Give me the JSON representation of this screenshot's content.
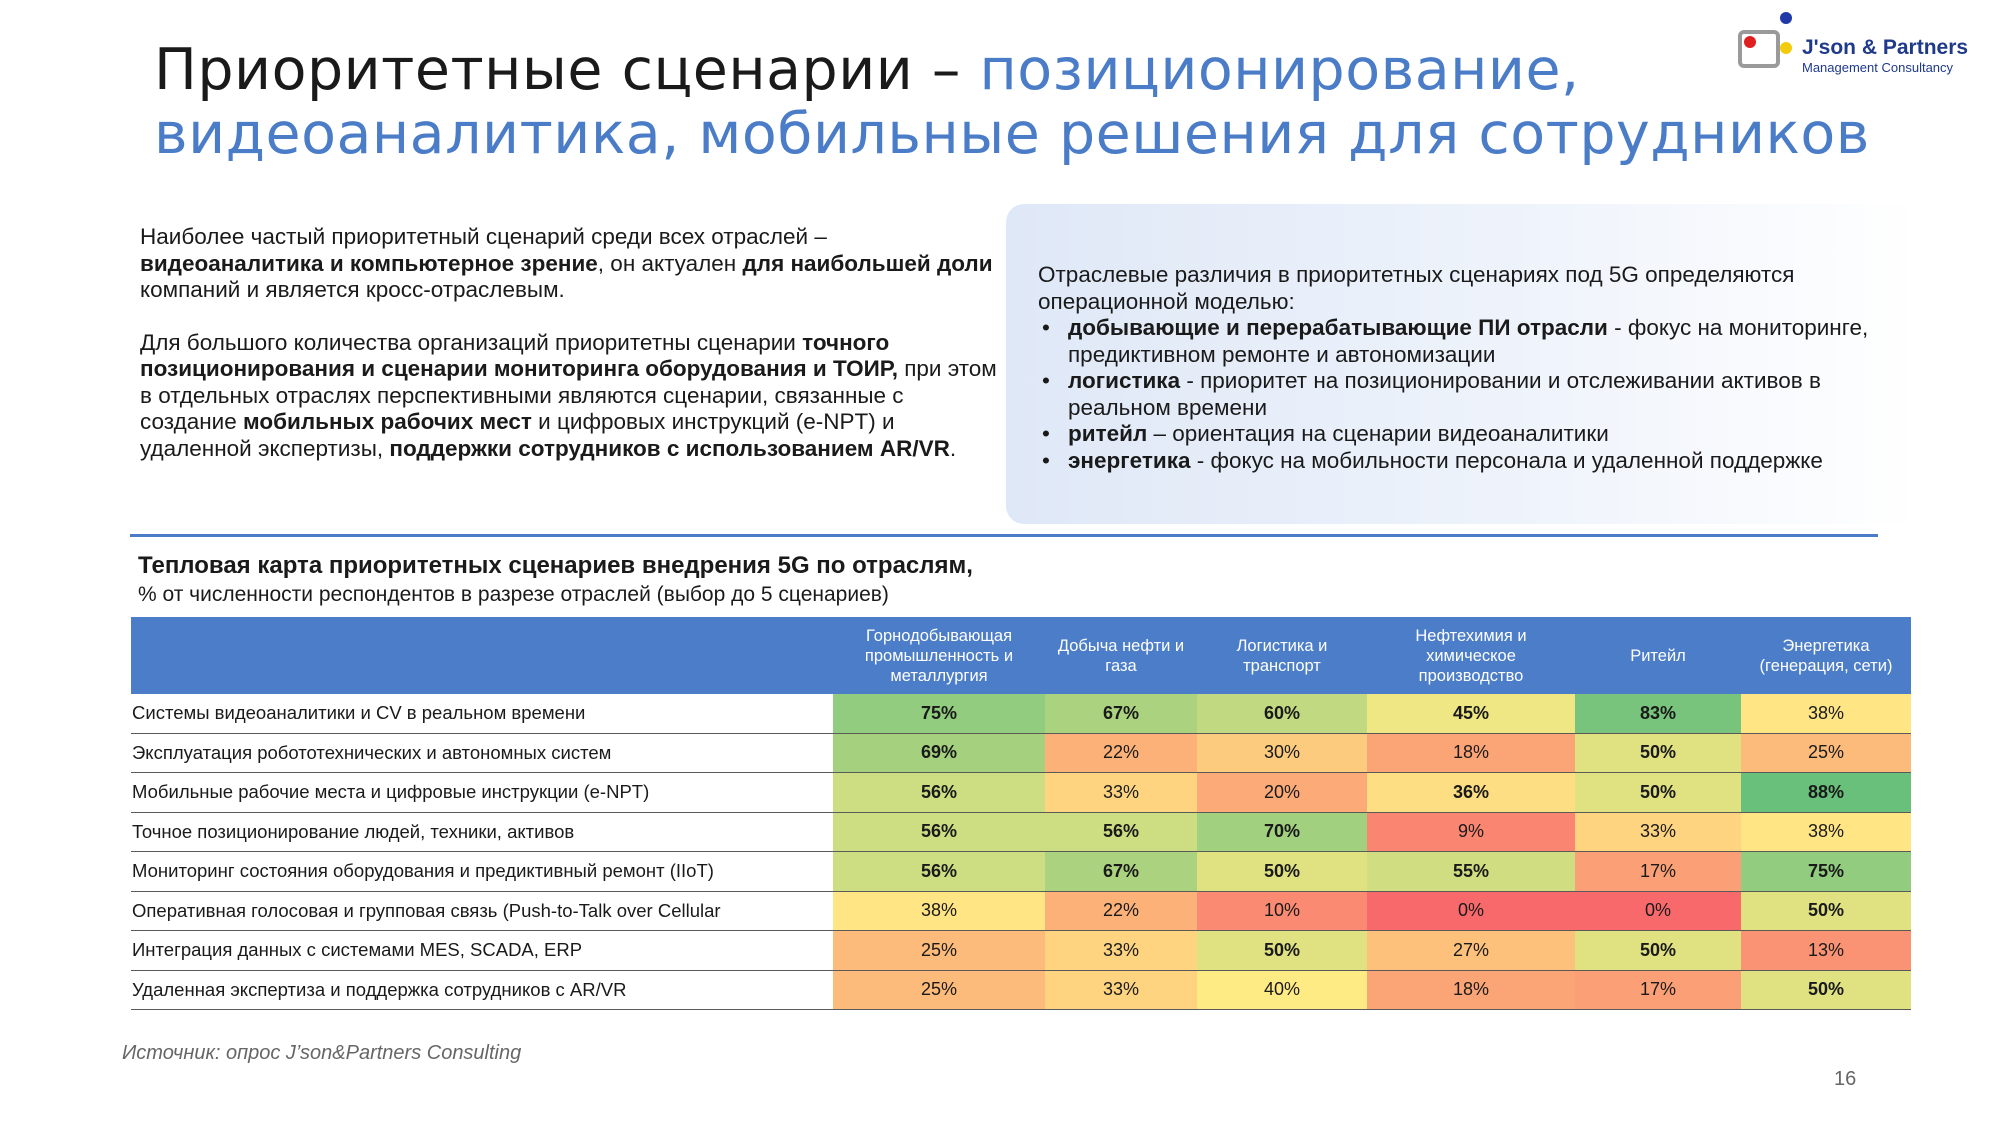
{
  "title": {
    "part1": "Приоритетные сценарии – ",
    "part2": "позиционирование, видеоаналитика, мобильные решения для сотрудников"
  },
  "logo": {
    "name": "J'son & Partners",
    "subtitle": "Management Consultancy"
  },
  "left_text": {
    "p1": [
      {
        "t": "Наиболее частый приоритетный сценарий среди всех отраслей – ",
        "b": false
      },
      {
        "t": "видеоаналитика и компьютерное зрение",
        "b": true
      },
      {
        "t": ", он актуален ",
        "b": false
      },
      {
        "t": "для наибольшей доли",
        "b": true
      },
      {
        "t": " компаний и является кросс-отраслевым.",
        "b": false
      }
    ],
    "p2": [
      {
        "t": "Для большого количества организаций приоритетны сценарии ",
        "b": false
      },
      {
        "t": "точного позиционирования и сценарии мониторинга оборудования и ТОИР,",
        "b": true
      },
      {
        "t": " при этом в отдельных отраслях перспективными являются сценарии, связанные с создание ",
        "b": false
      },
      {
        "t": "мобильных рабочих мест",
        "b": true
      },
      {
        "t": " и цифровых инструкций (e-NPT) и удаленной экспертизы, ",
        "b": false
      },
      {
        "t": "поддержки сотрудников с использованием AR/VR",
        "b": true
      },
      {
        "t": ".",
        "b": false
      }
    ]
  },
  "right_box": {
    "intro": "Отраслевые различия в приоритетных сценариях под 5G определяются операционной моделью:",
    "bullets": [
      {
        "bold": "добывающие и перерабатывающие ПИ отрасли",
        "rest": " - фокус на мониторинге, предиктивном ремонте и автономизации"
      },
      {
        "bold": "логистика",
        "rest": " - приоритет на позиционировании и отслеживании активов в реальном времени"
      },
      {
        "bold": "ритейл",
        "rest": " – ориентация на сценарии видеоаналитики"
      },
      {
        "bold": "энергетика",
        "rest": " - фокус на мобильности персонала и удаленной поддержке"
      }
    ]
  },
  "heatmap": {
    "title": "Тепловая карта приоритетных сценариев внедрения 5G по отраслям,",
    "subtitle": "% от численности респондентов в разрезе отраслей (выбор до 5 сценариев)",
    "columns": [
      "Горнодобывающая промышленность и металлургия",
      "Добыча нефти и газа",
      "Логистика и транспорт",
      "Нефтехимия и химическое производство",
      "Ритейл",
      "Энергетика (генерация, сети)"
    ],
    "rows": [
      {
        "label": "Системы видеоаналитики и CV в реальном времени",
        "values": [
          75,
          67,
          60,
          45,
          83,
          38
        ],
        "bold": [
          true,
          true,
          true,
          true,
          true,
          false
        ]
      },
      {
        "label": "Эксплуатация робототехнических и автономных систем",
        "values": [
          69,
          22,
          30,
          18,
          50,
          25
        ],
        "bold": [
          true,
          false,
          false,
          false,
          true,
          false
        ]
      },
      {
        "label": "Мобильные рабочие места и цифровые инструкции (e-NPT)",
        "values": [
          56,
          33,
          20,
          36,
          50,
          88
        ],
        "bold": [
          true,
          false,
          false,
          true,
          true,
          true
        ]
      },
      {
        "label": "Точное позиционирование людей, техники, активов",
        "values": [
          56,
          56,
          70,
          9,
          33,
          38
        ],
        "bold": [
          true,
          true,
          true,
          false,
          false,
          false
        ]
      },
      {
        "label": "Мониторинг состояния оборудования и предиктивный ремонт (IIoT)",
        "values": [
          56,
          67,
          50,
          55,
          17,
          75
        ],
        "bold": [
          true,
          true,
          true,
          true,
          false,
          true
        ]
      },
      {
        "label": "Оперативная голосовая и групповая связь (Push-to-Talk over Cellular",
        "values": [
          38,
          22,
          10,
          0,
          0,
          50
        ],
        "bold": [
          false,
          false,
          false,
          false,
          false,
          true
        ]
      },
      {
        "label": "Интеграция данных с системами MES, SCADA, ERP",
        "values": [
          25,
          33,
          50,
          27,
          50,
          13
        ],
        "bold": [
          false,
          false,
          true,
          false,
          true,
          false
        ]
      },
      {
        "label": "Удаленная экспертиза и поддержка сотрудников с AR/VR",
        "values": [
          25,
          33,
          40,
          18,
          17,
          50
        ],
        "bold": [
          false,
          false,
          false,
          false,
          false,
          true
        ]
      }
    ]
  },
  "source": "Источник: опрос J’son&Partners Consulting",
  "page_number": "16"
}
